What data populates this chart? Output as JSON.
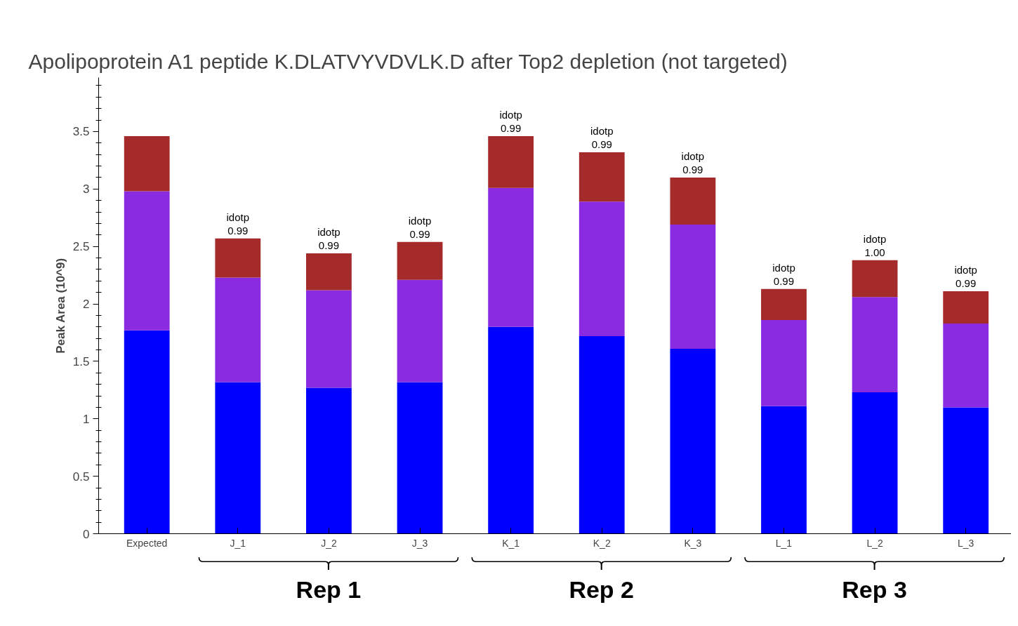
{
  "chart_data": {
    "type": "bar",
    "title": "Apolipoprotein A1 peptide K.DLATVYVDVLK.D after Top2 depletion (not targeted)",
    "ylabel": "Peak Area (10^9)",
    "categories": [
      "Expected",
      "J_1",
      "J_2",
      "J_3",
      "K_1",
      "K_2",
      "K_3",
      "L_1",
      "L_2",
      "L_3"
    ],
    "stacked": true,
    "series": [
      {
        "color": "#0000ff",
        "values": [
          1.77,
          1.32,
          1.27,
          1.32,
          1.8,
          1.72,
          1.61,
          1.11,
          1.23,
          1.1
        ]
      },
      {
        "color": "#8a2be2",
        "values": [
          1.21,
          0.91,
          0.85,
          0.89,
          1.21,
          1.17,
          1.08,
          0.75,
          0.83,
          0.73
        ]
      },
      {
        "color": "#a52a2a",
        "values": [
          0.48,
          0.34,
          0.32,
          0.33,
          0.45,
          0.43,
          0.41,
          0.27,
          0.32,
          0.28
        ],
        "value_labels": [
          null,
          "idotp\n0.99",
          "idotp\n0.99",
          "idotp\n0.99",
          "idotp\n0.99",
          "idotp\n0.99",
          "idotp\n0.99",
          "idotp\n0.99",
          "idotp\n1.00",
          "idotp\n0.99"
        ]
      }
    ],
    "ylim": [
      0,
      3.97
    ],
    "yticks": [
      0,
      {
        "value": 0.1,
        "label": null
      },
      {
        "value": 0.2,
        "label": null
      },
      {
        "value": 0.3,
        "label": null
      },
      {
        "value": 0.4,
        "label": null
      },
      0.5,
      {
        "value": 0.6,
        "label": null
      },
      {
        "value": 0.7,
        "label": null
      },
      {
        "value": 0.8,
        "label": null
      },
      {
        "value": 0.9,
        "label": null
      },
      1,
      {
        "value": 1.1,
        "label": null
      },
      {
        "value": 1.2,
        "label": null
      },
      {
        "value": 1.3,
        "label": null
      },
      {
        "value": 1.4,
        "label": null
      },
      1.5,
      {
        "value": 1.6,
        "label": null
      },
      {
        "value": 1.7,
        "label": null
      },
      {
        "value": 1.8,
        "label": null
      },
      {
        "value": 1.9,
        "label": null
      },
      2,
      {
        "value": 2.1,
        "label": null
      },
      {
        "value": 2.2,
        "label": null
      },
      {
        "value": 2.3,
        "label": null
      },
      {
        "value": 2.4,
        "label": null
      },
      2.5,
      {
        "value": 2.6,
        "label": null
      },
      {
        "value": 2.7,
        "label": null
      },
      {
        "value": 2.8,
        "label": null
      },
      {
        "value": 2.9,
        "label": null
      },
      3,
      {
        "value": 3.1,
        "label": null
      },
      {
        "value": 3.2,
        "label": null
      },
      {
        "value": 3.3,
        "label": null
      },
      {
        "value": 3.4,
        "label": null
      },
      3.5,
      {
        "value": 3.6,
        "label": null
      },
      {
        "value": 3.7,
        "label": null
      },
      {
        "value": 3.8,
        "label": null
      },
      {
        "value": 3.9,
        "label": null
      }
    ],
    "grid": false,
    "annotations": [
      "Rep 1",
      "Rep 2",
      "Rep 3"
    ]
  }
}
